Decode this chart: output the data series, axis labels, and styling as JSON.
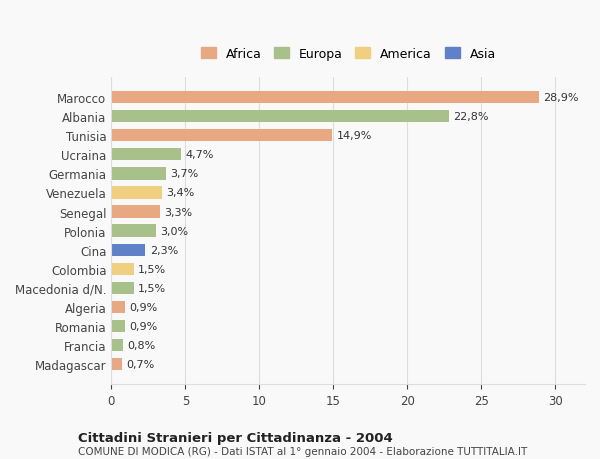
{
  "categories": [
    "Marocco",
    "Albania",
    "Tunisia",
    "Ucraina",
    "Germania",
    "Venezuela",
    "Senegal",
    "Polonia",
    "Cina",
    "Colombia",
    "Macedonia d/N.",
    "Algeria",
    "Romania",
    "Francia",
    "Madagascar"
  ],
  "values": [
    28.9,
    22.8,
    14.9,
    4.7,
    3.7,
    3.4,
    3.3,
    3.0,
    2.3,
    1.5,
    1.5,
    0.9,
    0.9,
    0.8,
    0.7
  ],
  "labels": [
    "28,9%",
    "22,8%",
    "14,9%",
    "4,7%",
    "3,7%",
    "3,4%",
    "3,3%",
    "3,0%",
    "2,3%",
    "1,5%",
    "1,5%",
    "0,9%",
    "0,9%",
    "0,8%",
    "0,7%"
  ],
  "continents": [
    "Africa",
    "Europa",
    "Africa",
    "Europa",
    "Europa",
    "America",
    "Africa",
    "Europa",
    "Asia",
    "America",
    "Europa",
    "Africa",
    "Europa",
    "Europa",
    "Africa"
  ],
  "colors": {
    "Africa": "#E8A882",
    "Europa": "#A8C08A",
    "America": "#F0D080",
    "Asia": "#6080C8"
  },
  "legend_colors": {
    "Africa": "#E8A882",
    "Europa": "#A8C08A",
    "America": "#F0D080",
    "Asia": "#6080C8"
  },
  "xlim": [
    0,
    32
  ],
  "xticks": [
    0,
    5,
    10,
    15,
    20,
    25,
    30
  ],
  "title": "Cittadini Stranieri per Cittadinanza - 2004",
  "subtitle": "COMUNE DI MODICA (RG) - Dati ISTAT al 1° gennaio 2004 - Elaborazione TUTTITALIA.IT",
  "background_color": "#f9f9f9",
  "grid_color": "#dddddd",
  "bar_height": 0.65
}
